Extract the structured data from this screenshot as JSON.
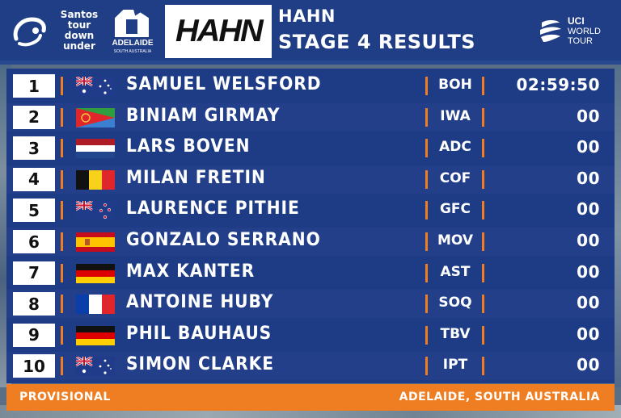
{
  "header": {
    "event_logo_lines": [
      "Santos",
      "tour",
      "down",
      "under"
    ],
    "host_logo_name": "ADELAIDE",
    "host_logo_sub": "SOUTH AUSTRALIA",
    "sponsor": "HAHN",
    "title_line1": "HAHN",
    "title_line2": "STAGE 4 RESULTS",
    "uci_lines": [
      "UCI",
      "WORLD",
      "TOUR"
    ]
  },
  "results": [
    {
      "pos": "1",
      "flag": "australia",
      "name": "SAMUEL  WELSFORD",
      "team": "BOH",
      "time": "02:59:50"
    },
    {
      "pos": "2",
      "flag": "eritrea",
      "name": "BINIAM  GIRMAY",
      "team": "IWA",
      "time": "00"
    },
    {
      "pos": "3",
      "flag": "netherlands",
      "name": "LARS  BOVEN",
      "team": "ADC",
      "time": "00"
    },
    {
      "pos": "4",
      "flag": "belgium",
      "name": "MILAN  FRETIN",
      "team": "COF",
      "time": "00"
    },
    {
      "pos": "5",
      "flag": "new-zealand",
      "name": "LAURENCE  PITHIE",
      "team": "GFC",
      "time": "00"
    },
    {
      "pos": "6",
      "flag": "spain",
      "name": "GONZALO  SERRANO",
      "team": "MOV",
      "time": "00"
    },
    {
      "pos": "7",
      "flag": "germany",
      "name": "MAX  KANTER",
      "team": "AST",
      "time": "00"
    },
    {
      "pos": "8",
      "flag": "france",
      "name": "ANTOINE  HUBY",
      "team": "SOQ",
      "time": "00"
    },
    {
      "pos": "9",
      "flag": "germany",
      "name": "PHIL  BAUHAUS",
      "team": "TBV",
      "time": "00"
    },
    {
      "pos": "10",
      "flag": "australia",
      "name": "SIMON  CLARKE",
      "team": "IPT",
      "time": "00"
    }
  ],
  "footer": {
    "left": "PROVISIONAL",
    "right": "ADELAIDE, SOUTH AUSTRALIA"
  },
  "colors": {
    "header_bg": "#1f3e86",
    "table_bg": "#1e3b85",
    "accent_orange": "#ef7d22"
  }
}
